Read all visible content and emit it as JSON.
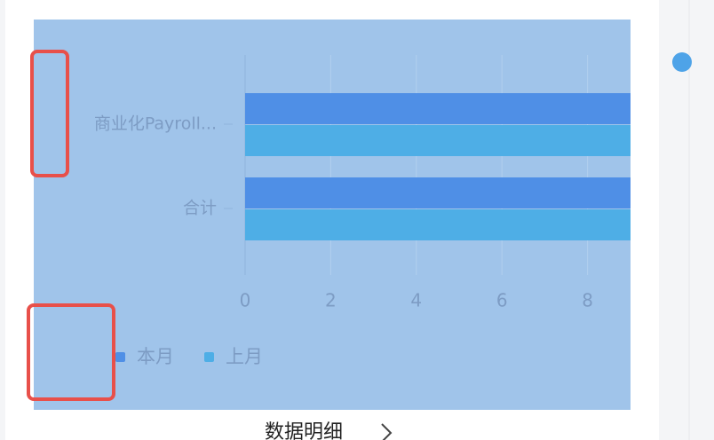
{
  "chart_data": {
    "type": "hbar",
    "categories": [
      "商业化Payroll...",
      "合计"
    ],
    "series": [
      {
        "name": "本月",
        "color": "#4f8fe6",
        "values": [
          10,
          10
        ]
      },
      {
        "name": "上月",
        "color": "#4eaee6",
        "values": [
          10,
          10
        ]
      }
    ],
    "xlim": [
      0,
      10
    ],
    "xticks": [
      0,
      2,
      4,
      6,
      8
    ],
    "grid": true,
    "legend": "bottom"
  },
  "footer_link": "数据明细"
}
